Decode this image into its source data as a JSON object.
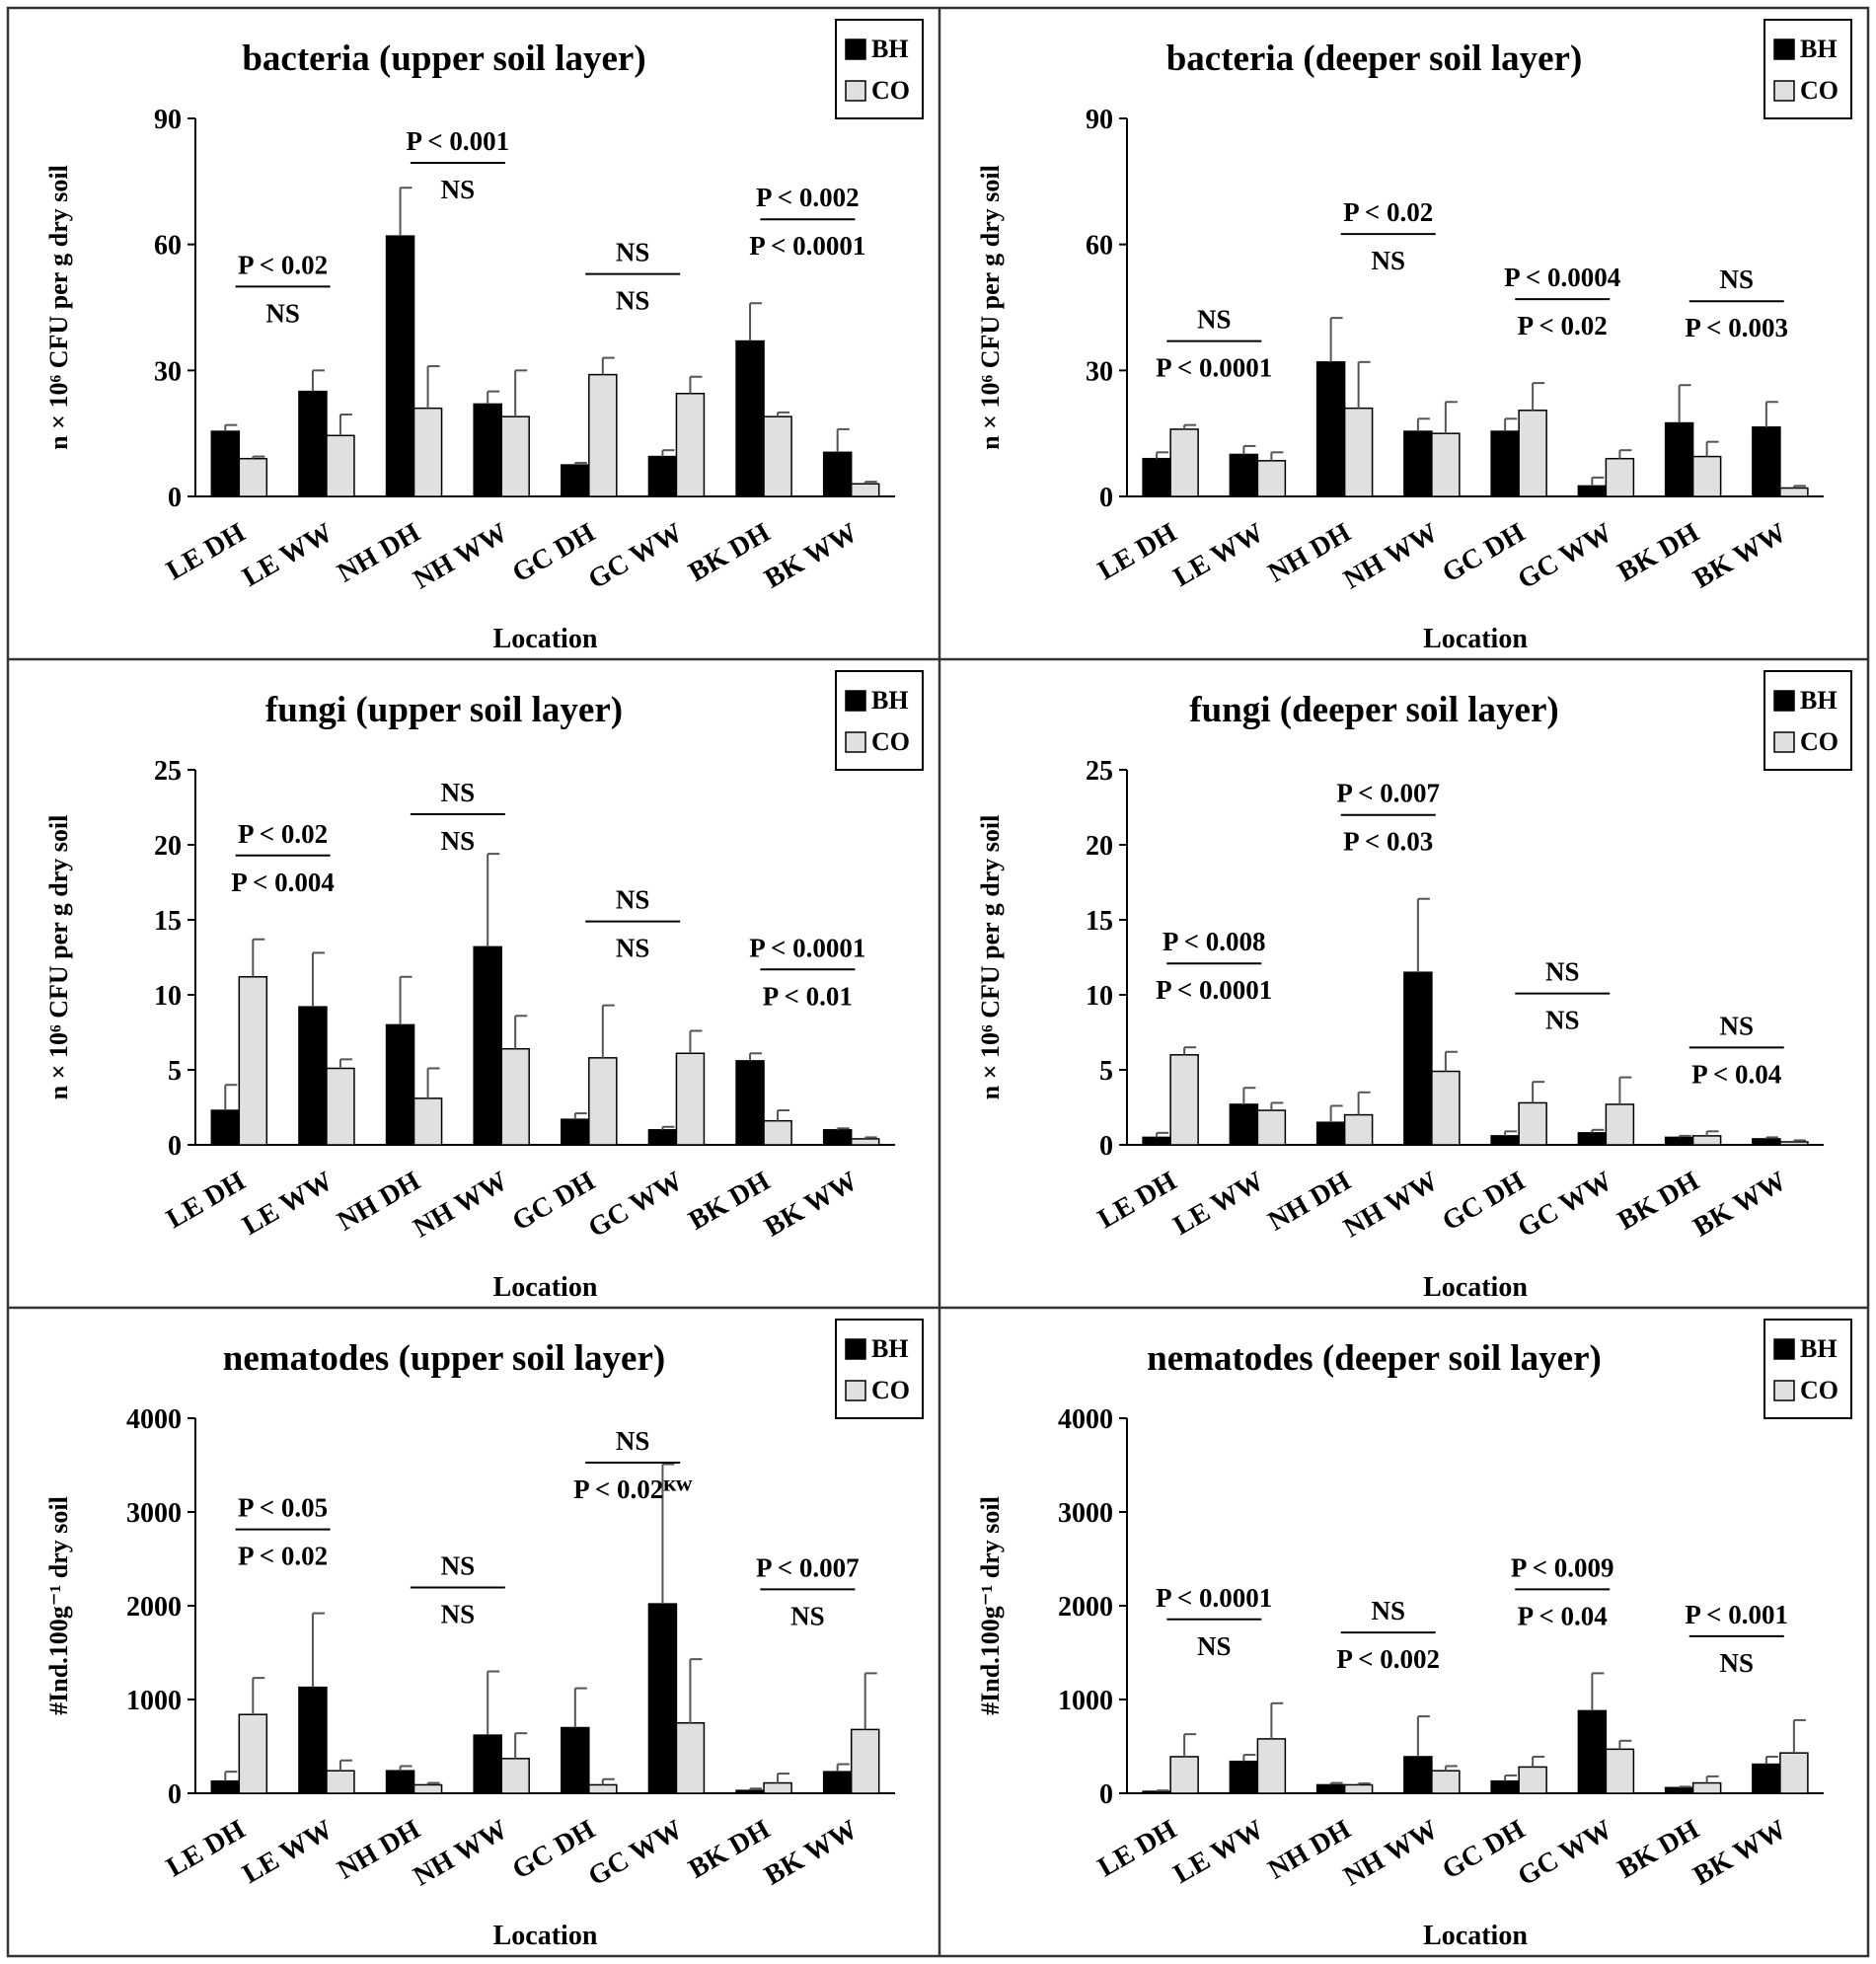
{
  "series_names": [
    "BH",
    "CO"
  ],
  "colors": {
    "bh": "#000000",
    "co": "#e0e0e0",
    "border": "#333333"
  },
  "chart_data": [
    {
      "type": "bar",
      "title": "bacteria (upper soil layer)",
      "ylabel": "n × 10⁶ CFU per g dry soil",
      "xlabel": "Location",
      "ylim": [
        0,
        90
      ],
      "yticks": [
        "0",
        "30",
        "60",
        "90"
      ],
      "categories": [
        "LE DH",
        "LE WW",
        "NH DH",
        "NH WW",
        "GC DH",
        "GC WW",
        "BK DH",
        "BK WW"
      ],
      "series": [
        {
          "name": "BH",
          "values": [
            15.5,
            25,
            62,
            22,
            7.5,
            9.5,
            37,
            10.5
          ],
          "errors": [
            1.5,
            5,
            11.5,
            3,
            0.5,
            1.5,
            9,
            5.5
          ]
        },
        {
          "name": "CO",
          "values": [
            9,
            14.5,
            21,
            19,
            29,
            24.5,
            19,
            3
          ],
          "errors": [
            0.5,
            5,
            10,
            11,
            4,
            4,
            1,
            0.5
          ]
        }
      ],
      "annotations": [
        {
          "pair": [
            0,
            1
          ],
          "top": "P < 0.02",
          "bottom": "NS"
        },
        {
          "pair": [
            2,
            3
          ],
          "top": "P < 0.001",
          "bottom": "NS"
        },
        {
          "pair": [
            4,
            5
          ],
          "top": "NS",
          "bottom": "NS"
        },
        {
          "pair": [
            6,
            7
          ],
          "top": "P < 0.002",
          "bottom": "P < 0.0001"
        }
      ]
    },
    {
      "type": "bar",
      "title": "bacteria (deeper soil layer)",
      "ylabel": "n × 10⁶ CFU per g dry soil",
      "xlabel": "Location",
      "ylim": [
        0,
        90
      ],
      "yticks": [
        "0",
        "30",
        "60",
        "90"
      ],
      "categories": [
        "LE DH",
        "LE WW",
        "NH DH",
        "NH WW",
        "GC DH",
        "GC WW",
        "BK DH",
        "BK WW"
      ],
      "series": [
        {
          "name": "BH",
          "values": [
            9,
            10,
            32,
            15.5,
            15.5,
            2.5,
            17.5,
            16.5
          ],
          "errors": [
            1.5,
            2,
            10.5,
            3,
            3,
            2,
            9,
            6
          ]
        },
        {
          "name": "CO",
          "values": [
            16,
            8.5,
            21,
            15,
            20.5,
            9,
            9.5,
            2
          ],
          "errors": [
            1,
            2,
            11,
            7.5,
            6.5,
            2,
            3.5,
            0.5
          ]
        }
      ],
      "annotations": [
        {
          "pair": [
            0,
            1
          ],
          "top": "NS",
          "bottom": "P < 0.0001"
        },
        {
          "pair": [
            2,
            3
          ],
          "top": "P < 0.02",
          "bottom": "NS"
        },
        {
          "pair": [
            4,
            5
          ],
          "top": "P < 0.0004",
          "bottom": "P < 0.02"
        },
        {
          "pair": [
            6,
            7
          ],
          "top": "NS",
          "bottom": "P < 0.003"
        }
      ]
    },
    {
      "type": "bar",
      "title": "fungi (upper soil layer)",
      "ylabel": "n × 10⁶ CFU per g dry soil",
      "xlabel": "Location",
      "ylim": [
        0,
        25
      ],
      "yticks": [
        "0",
        "5",
        "10",
        "15",
        "20",
        "25"
      ],
      "categories": [
        "LE DH",
        "LE WW",
        "NH DH",
        "NH WW",
        "GC DH",
        "GC WW",
        "BK DH",
        "BK WW"
      ],
      "series": [
        {
          "name": "BH",
          "values": [
            2.3,
            9.2,
            8,
            13.2,
            1.7,
            1,
            5.6,
            1
          ],
          "errors": [
            1.7,
            3.6,
            3.2,
            6.2,
            0.4,
            0.2,
            0.5,
            0.1
          ]
        },
        {
          "name": "CO",
          "values": [
            11.2,
            5.1,
            3.1,
            6.4,
            5.8,
            6.1,
            1.6,
            0.4
          ],
          "errors": [
            2.5,
            0.6,
            2,
            2.2,
            3.5,
            1.5,
            0.7,
            0.1
          ]
        }
      ],
      "annotations": [
        {
          "pair": [
            0,
            1
          ],
          "top": "P < 0.02",
          "bottom": "P < 0.004"
        },
        {
          "pair": [
            2,
            3
          ],
          "top": "NS",
          "bottom": "NS"
        },
        {
          "pair": [
            4,
            5
          ],
          "top": "NS",
          "bottom": "NS"
        },
        {
          "pair": [
            6,
            7
          ],
          "top": "P < 0.0001",
          "bottom": "P < 0.01"
        }
      ]
    },
    {
      "type": "bar",
      "title": "fungi (deeper soil layer)",
      "ylabel": "n × 10⁶ CFU per g dry soil",
      "xlabel": "Location",
      "ylim": [
        0,
        25
      ],
      "yticks": [
        "0",
        "5",
        "10",
        "15",
        "20",
        "25"
      ],
      "categories": [
        "LE DH",
        "LE WW",
        "NH DH",
        "NH WW",
        "GC DH",
        "GC WW",
        "BK DH",
        "BK WW"
      ],
      "series": [
        {
          "name": "BH",
          "values": [
            0.5,
            2.7,
            1.5,
            11.5,
            0.6,
            0.8,
            0.5,
            0.4
          ],
          "errors": [
            0.3,
            1.1,
            1.1,
            4.9,
            0.3,
            0.2,
            0.1,
            0.1
          ]
        },
        {
          "name": "CO",
          "values": [
            6,
            2.3,
            2,
            4.9,
            2.8,
            2.7,
            0.6,
            0.2
          ],
          "errors": [
            0.5,
            0.5,
            1.5,
            1.3,
            1.4,
            1.8,
            0.3,
            0.1
          ]
        }
      ],
      "annotations": [
        {
          "pair": [
            0,
            1
          ],
          "top": "P < 0.008",
          "bottom": "P < 0.0001"
        },
        {
          "pair": [
            2,
            3
          ],
          "top": "P < 0.007",
          "bottom": "P < 0.03"
        },
        {
          "pair": [
            4,
            5
          ],
          "top": "NS",
          "bottom": "NS"
        },
        {
          "pair": [
            6,
            7
          ],
          "top": "NS",
          "bottom": "P < 0.04"
        }
      ]
    },
    {
      "type": "bar",
      "title": "nematodes (upper soil layer)",
      "ylabel": "#Ind.100g⁻¹ dry soil",
      "xlabel": "Location",
      "ylim": [
        0,
        4000
      ],
      "yticks": [
        "0",
        "1000",
        "2000",
        "3000",
        "4000"
      ],
      "categories": [
        "LE DH",
        "LE WW",
        "NH DH",
        "NH WW",
        "GC DH",
        "GC WW",
        "BK DH",
        "BK WW"
      ],
      "series": [
        {
          "name": "BH",
          "values": [
            130,
            1130,
            240,
            620,
            700,
            2020,
            30,
            230
          ],
          "errors": [
            100,
            790,
            50,
            680,
            420,
            1490,
            20,
            80
          ]
        },
        {
          "name": "CO",
          "values": [
            840,
            240,
            90,
            370,
            90,
            750,
            110,
            680
          ],
          "errors": [
            390,
            110,
            20,
            270,
            60,
            680,
            100,
            600
          ]
        }
      ],
      "annotations": [
        {
          "pair": [
            0,
            1
          ],
          "top": "P < 0.05",
          "bottom": "P < 0.02"
        },
        {
          "pair": [
            2,
            3
          ],
          "top": "NS",
          "bottom": "NS"
        },
        {
          "pair": [
            4,
            5
          ],
          "top": "NS",
          "bottom": "P < 0.02ᴷᵂ"
        },
        {
          "pair": [
            6,
            7
          ],
          "top": "P < 0.007",
          "bottom": "NS"
        }
      ]
    },
    {
      "type": "bar",
      "title": "nematodes (deeper soil layer)",
      "ylabel": "#Ind.100g⁻¹ dry soil",
      "xlabel": "Location",
      "ylim": [
        0,
        4000
      ],
      "yticks": [
        "0",
        "1000",
        "2000",
        "3000",
        "4000"
      ],
      "categories": [
        "LE DH",
        "LE WW",
        "NH DH",
        "NH WW",
        "GC DH",
        "GC WW",
        "BK DH",
        "BK WW"
      ],
      "series": [
        {
          "name": "BH",
          "values": [
            20,
            340,
            90,
            390,
            130,
            880,
            60,
            310
          ],
          "errors": [
            10,
            70,
            20,
            430,
            60,
            400,
            10,
            80
          ]
        },
        {
          "name": "CO",
          "values": [
            390,
            580,
            90,
            240,
            280,
            470,
            110,
            430
          ],
          "errors": [
            240,
            380,
            15,
            50,
            110,
            90,
            70,
            350
          ]
        }
      ],
      "annotations": [
        {
          "pair": [
            0,
            1
          ],
          "top": "P < 0.0001",
          "bottom": "NS"
        },
        {
          "pair": [
            2,
            3
          ],
          "top": "NS",
          "bottom": "P < 0.002"
        },
        {
          "pair": [
            4,
            5
          ],
          "top": "P < 0.009",
          "bottom": "P < 0.04"
        },
        {
          "pair": [
            6,
            7
          ],
          "top": "P < 0.001",
          "bottom": "NS"
        }
      ]
    }
  ]
}
